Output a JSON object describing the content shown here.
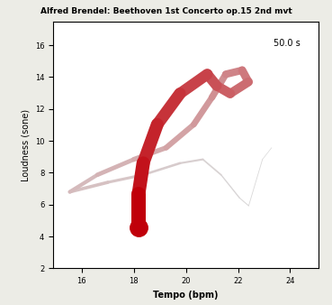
{
  "chart_data": {
    "type": "line",
    "title": "Alfred Brendel: Beethoven 1st Concerto op.15 2nd mvt",
    "x_label": "Tempo (bpm)",
    "y_label": "Loudness (sone)",
    "annotation": "50.0 s",
    "x": [
      23.29,
      22.94,
      22.41,
      22.06,
      21.35,
      20.65,
      19.77,
      18.36,
      17.0,
      15.54,
      16.6,
      18.0,
      19.24,
      20.3,
      21.0,
      21.53,
      22.16,
      22.4,
      21.7,
      21.18,
      20.82,
      19.77,
      18.9,
      18.36,
      18.18,
      18.18
    ],
    "values": [
      9.57,
      8.84,
      5.93,
      6.42,
      7.87,
      8.84,
      8.6,
      7.87,
      7.4,
      6.8,
      7.87,
      8.84,
      9.57,
      11.03,
      12.73,
      14.18,
      14.43,
      13.7,
      12.97,
      13.46,
      14.18,
      12.97,
      11.03,
      8.6,
      6.66,
      4.57
    ],
    "color": "#c0000a",
    "xlim": [
      14.9,
      25.1
    ],
    "xticks": [
      16,
      18,
      20,
      22,
      24
    ],
    "ylim": [
      2,
      17.5
    ],
    "yticks": [
      2,
      4,
      6,
      8,
      10,
      12,
      14,
      16
    ],
    "grid": false
  }
}
